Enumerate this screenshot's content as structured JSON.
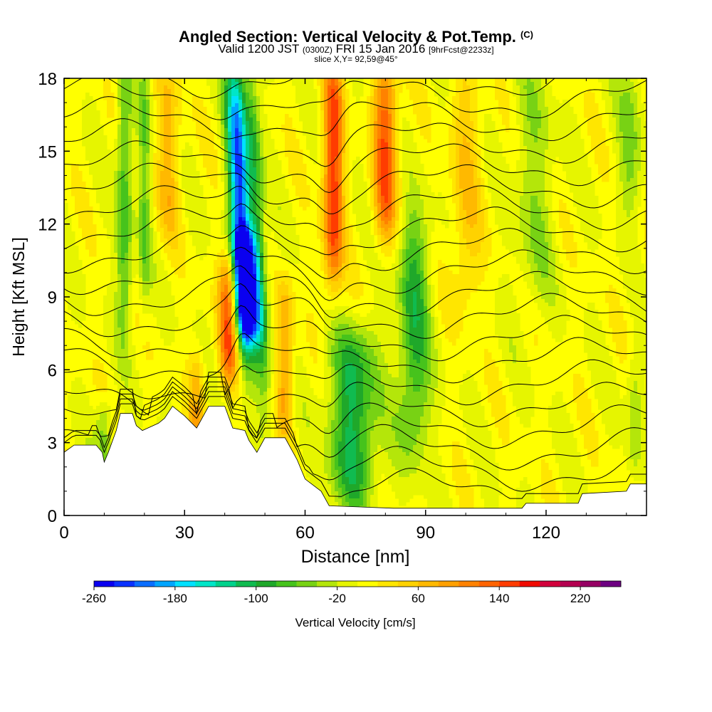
{
  "header": {
    "title": "Angled Section: Vertical Velocity & Pot.Temp.",
    "title_suffix": "(C)",
    "valid_prefix": "Valid 1200 JST",
    "valid_utc": "(0300Z)",
    "valid_date": "FRI 15 Jan 2016",
    "forecast": "[9hrFcst@2233z]",
    "slice": "slice X,Y= 92,59@45°"
  },
  "chart_data": {
    "type": "heatmap",
    "xlabel": "Distance [nm]",
    "ylabel": "Height [Kft MSL]",
    "xlim": [
      0,
      145
    ],
    "ylim": [
      0,
      18
    ],
    "x_ticks": [
      0,
      30,
      60,
      90,
      120
    ],
    "y_ticks": [
      0,
      3,
      6,
      9,
      12,
      15,
      18
    ],
    "colorbar": {
      "label": "Vertical Velocity [cm/s]",
      "range": [
        -260,
        260
      ],
      "ticks": [
        -260,
        -180,
        -100,
        -20,
        60,
        140,
        220
      ],
      "colors": [
        "#0a00f0",
        "#0a32ff",
        "#0a6eff",
        "#00a5ff",
        "#00e1ff",
        "#00e6c8",
        "#00d28c",
        "#10bb50",
        "#1fa82a",
        "#46c31c",
        "#78d214",
        "#b4e60a",
        "#e6f500",
        "#ffff00",
        "#ffe600",
        "#ffd200",
        "#ffb900",
        "#ffa000",
        "#ff8200",
        "#ff6400",
        "#ff3c00",
        "#f00a00",
        "#d2003c",
        "#b40050",
        "#960064",
        "#6e0082"
      ]
    },
    "velocity_features": [
      {
        "x": 44,
        "z_top": 18,
        "z_bottom": 7,
        "width": 2.5,
        "value": -230
      },
      {
        "x": 45,
        "z_top": 11,
        "z_bottom": 8,
        "width": 3,
        "value": -180
      },
      {
        "x": 41,
        "z_top": 10,
        "z_bottom": 6,
        "width": 2.5,
        "value": 130
      },
      {
        "x": 48,
        "z_top": 18,
        "z_bottom": 5,
        "width": 2,
        "value": -90
      },
      {
        "x": 67,
        "z_top": 18,
        "z_bottom": 10,
        "width": 2.5,
        "value": 150
      },
      {
        "x": 80,
        "z_top": 18,
        "z_bottom": 12,
        "width": 3,
        "value": 130
      },
      {
        "x": 72,
        "z_top": 7,
        "z_bottom": 1,
        "width": 6,
        "value": -110
      },
      {
        "x": 87,
        "z_top": 12,
        "z_bottom": 3,
        "width": 4,
        "value": -90
      },
      {
        "x": 15,
        "z_top": 18,
        "z_bottom": 8,
        "width": 2,
        "value": -80
      },
      {
        "x": 20,
        "z_top": 18,
        "z_bottom": 9,
        "width": 1.5,
        "value": -60
      },
      {
        "x": 117,
        "z_top": 18,
        "z_bottom": 9,
        "width": 5,
        "value": -40
      },
      {
        "x": 141,
        "z_top": 18,
        "z_bottom": 13,
        "width": 3,
        "value": -50
      },
      {
        "x": 26,
        "z_top": 18,
        "z_bottom": 12,
        "width": 3,
        "value": 60
      },
      {
        "x": 100,
        "z_top": 18,
        "z_bottom": 9,
        "width": 4,
        "value": 50
      },
      {
        "x": 10,
        "z_top": 4,
        "z_bottom": 2,
        "width": 2,
        "value": -60
      },
      {
        "x": 142,
        "z_top": 6,
        "z_bottom": 2,
        "width": 2,
        "value": -40
      },
      {
        "x": 55,
        "z_top": 9,
        "z_bottom": 4,
        "width": 2,
        "value": 80
      },
      {
        "x": 33,
        "z_top": 6,
        "z_bottom": 3,
        "width": 2,
        "value": 60
      }
    ],
    "terrain": [
      {
        "x": 0,
        "z": 2.6
      },
      {
        "x": 2.5,
        "z": 2.9
      },
      {
        "x": 8,
        "z": 2.9
      },
      {
        "x": 9.5,
        "z": 2.6
      },
      {
        "x": 10,
        "z": 2.2
      },
      {
        "x": 11,
        "z": 2.6
      },
      {
        "x": 13,
        "z": 3.5
      },
      {
        "x": 14,
        "z": 4.2
      },
      {
        "x": 17,
        "z": 4.2
      },
      {
        "x": 18,
        "z": 3.7
      },
      {
        "x": 19.5,
        "z": 3.5
      },
      {
        "x": 23.5,
        "z": 3.8
      },
      {
        "x": 25,
        "z": 4.0
      },
      {
        "x": 27,
        "z": 4.5
      },
      {
        "x": 30,
        "z": 4.1
      },
      {
        "x": 33,
        "z": 3.6
      },
      {
        "x": 36,
        "z": 4.5
      },
      {
        "x": 40,
        "z": 4.5
      },
      {
        "x": 42,
        "z": 3.6
      },
      {
        "x": 45,
        "z": 3.5
      },
      {
        "x": 46,
        "z": 3.1
      },
      {
        "x": 48,
        "z": 2.6
      },
      {
        "x": 50,
        "z": 3.2
      },
      {
        "x": 55,
        "z": 3.2
      },
      {
        "x": 58,
        "z": 2.3
      },
      {
        "x": 60,
        "z": 1.5
      },
      {
        "x": 64,
        "z": 1.0
      },
      {
        "x": 66,
        "z": 0.4
      },
      {
        "x": 82,
        "z": 0.3
      },
      {
        "x": 114,
        "z": 0.3
      },
      {
        "x": 115,
        "z": 0.5
      },
      {
        "x": 128,
        "z": 0.5
      },
      {
        "x": 129,
        "z": 0.9
      },
      {
        "x": 140,
        "z": 1.0
      },
      {
        "x": 141,
        "z": 1.3
      },
      {
        "x": 145,
        "z": 1.3
      }
    ],
    "theta_contours": {
      "start": 1,
      "interval": 1,
      "count": 20,
      "label_value": "8"
    }
  }
}
